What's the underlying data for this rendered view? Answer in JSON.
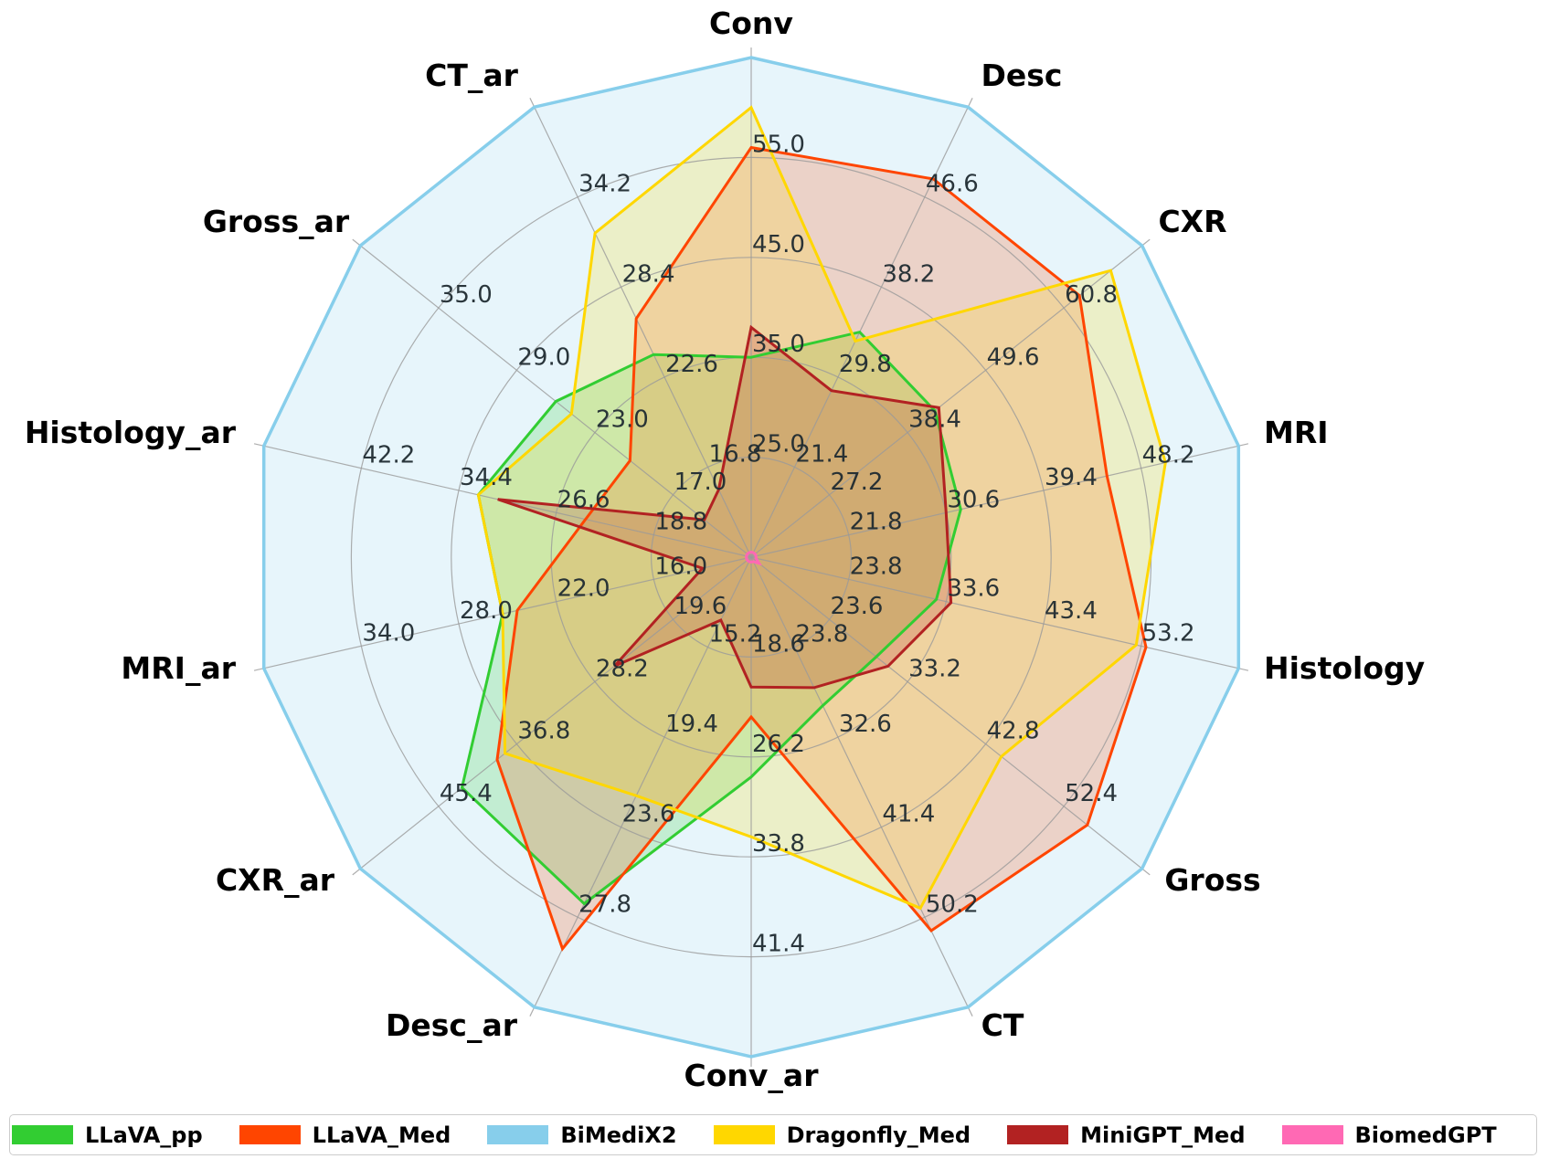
{
  "chart_data": {
    "type": "radar",
    "title": "",
    "axes": [
      "Conv",
      "Desc",
      "CXR",
      "MRI",
      "Histology",
      "Gross",
      "CT",
      "Conv_ar",
      "Desc_ar",
      "CXR_ar",
      "MRI_ar",
      "Histology_ar",
      "Gross_ar",
      "CT_ar"
    ],
    "ring_fractions": [
      0.2,
      0.4,
      0.6,
      0.8
    ],
    "tick_labels": {
      "Conv": [
        "25.0",
        "35.0",
        "45.0",
        "55.0"
      ],
      "Desc": [
        "21.4",
        "29.8",
        "38.2",
        "46.6"
      ],
      "CXR": [
        "27.2",
        "38.4",
        "49.6",
        "60.8"
      ],
      "MRI": [
        "21.8",
        "30.6",
        "39.4",
        "48.2"
      ],
      "Histology": [
        "23.8",
        "33.6",
        "43.4",
        "53.2"
      ],
      "Gross": [
        "23.6",
        "33.2",
        "42.8",
        "52.4"
      ],
      "CT": [
        "23.8",
        "32.6",
        "41.4",
        "50.2"
      ],
      "Conv_ar": [
        "18.6",
        "26.2",
        "33.8",
        "41.4"
      ],
      "Desc_ar": [
        "15.2",
        "19.4",
        "23.6",
        "27.8"
      ],
      "CXR_ar": [
        "19.6",
        "28.2",
        "36.8",
        "45.4"
      ],
      "MRI_ar": [
        "16.0",
        "22.0",
        "28.0",
        "34.0"
      ],
      "Histology_ar": [
        "18.8",
        "26.6",
        "34.4",
        "42.2"
      ],
      "Gross_ar": [
        "17.0",
        "23.0",
        "29.0",
        "35.0"
      ],
      "CT_ar": [
        "16.8",
        "22.6",
        "28.4",
        "34.2"
      ]
    },
    "series": [
      {
        "name": "BiMediX2",
        "color": "#87CEEB",
        "fill_opacity": 0.2,
        "fractions": [
          1,
          1,
          1,
          1,
          1,
          1,
          1,
          1,
          1,
          1,
          1,
          1,
          1,
          1
        ],
        "values": [
          65.0,
          55.0,
          72.0,
          57.0,
          63.0,
          62.0,
          59.0,
          49.0,
          32.0,
          54.0,
          40.0,
          50.0,
          41.0,
          40.0
        ]
      },
      {
        "name": "LLaVA_pp",
        "color": "#32CD32",
        "fill_opacity": 0.2,
        "fractions": [
          0.4,
          0.5,
          0.47,
          0.43,
          0.38,
          0.32,
          0.33,
          0.44,
          0.77,
          0.74,
          0.51,
          0.56,
          0.5,
          0.45
        ],
        "values": [
          35.0,
          30.0,
          38.0,
          30.0,
          32.0,
          29.0,
          30.0,
          27.0,
          28.0,
          37.0,
          28.0,
          35.0,
          30.0,
          26.0
        ]
      },
      {
        "name": "LLaVA_Med",
        "color": "#FF4500",
        "fill_opacity": 0.2,
        "fractions": [
          0.82,
          0.84,
          0.84,
          0.73,
          0.81,
          0.86,
          0.83,
          0.32,
          0.87,
          0.65,
          0.48,
          0.34,
          0.31,
          0.53
        ],
        "values": [
          56.0,
          45.0,
          61.0,
          43.0,
          53.0,
          53.0,
          50.0,
          22.0,
          29.0,
          35.0,
          27.0,
          27.0,
          23.0,
          28.0
        ]
      },
      {
        "name": "Dragonfly_Med",
        "color": "#FFD700",
        "fill_opacity": 0.2,
        "fractions": [
          0.9,
          0.48,
          0.92,
          0.85,
          0.79,
          0.64,
          0.78,
          0.56,
          0.53,
          0.63,
          0.51,
          0.56,
          0.46,
          0.72
        ],
        "values": [
          60.0,
          30.0,
          64.0,
          47.0,
          51.0,
          44.0,
          49.0,
          29.0,
          23.0,
          34.0,
          28.0,
          35.0,
          28.0,
          32.0
        ]
      },
      {
        "name": "MiniGPT_Med",
        "color": "#B22222",
        "fill_opacity": 0.2,
        "fractions": [
          0.46,
          0.37,
          0.48,
          0.4,
          0.41,
          0.35,
          0.29,
          0.26,
          0.14,
          0.35,
          0.1,
          0.52,
          0.12,
          0.15
        ],
        "values": [
          38.0,
          26.0,
          38.0,
          28.0,
          32.0,
          29.0,
          28.0,
          22.0,
          12.0,
          23.0,
          11.0,
          33.0,
          14.0,
          14.0
        ]
      },
      {
        "name": "BiomedGPT",
        "color": "#FF69B4",
        "fill_opacity": 0.4,
        "fractions": [
          0.01,
          0.01,
          0.01,
          0.01,
          0.01,
          0.02,
          0.01,
          0.01,
          0.01,
          0.01,
          0.01,
          0.01,
          0.01,
          0.01
        ],
        "values": [
          11.0,
          13.0,
          16.0,
          13.0,
          14.0,
          14.0,
          15.0,
          11.0,
          11.0,
          11.0,
          10.0,
          11.0,
          11.0,
          11.0
        ]
      }
    ],
    "grid": true,
    "legend_position": "bottom"
  },
  "legend": [
    {
      "label": "LLaVA_pp",
      "color": "#32CD32"
    },
    {
      "label": "LLaVA_Med",
      "color": "#FF4500"
    },
    {
      "label": "BiMediX2",
      "color": "#87CEEB"
    },
    {
      "label": "Dragonfly_Med",
      "color": "#FFD700"
    },
    {
      "label": "MiniGPT_Med",
      "color": "#B22222"
    },
    {
      "label": "BiomedGPT",
      "color": "#FF69B4"
    }
  ]
}
